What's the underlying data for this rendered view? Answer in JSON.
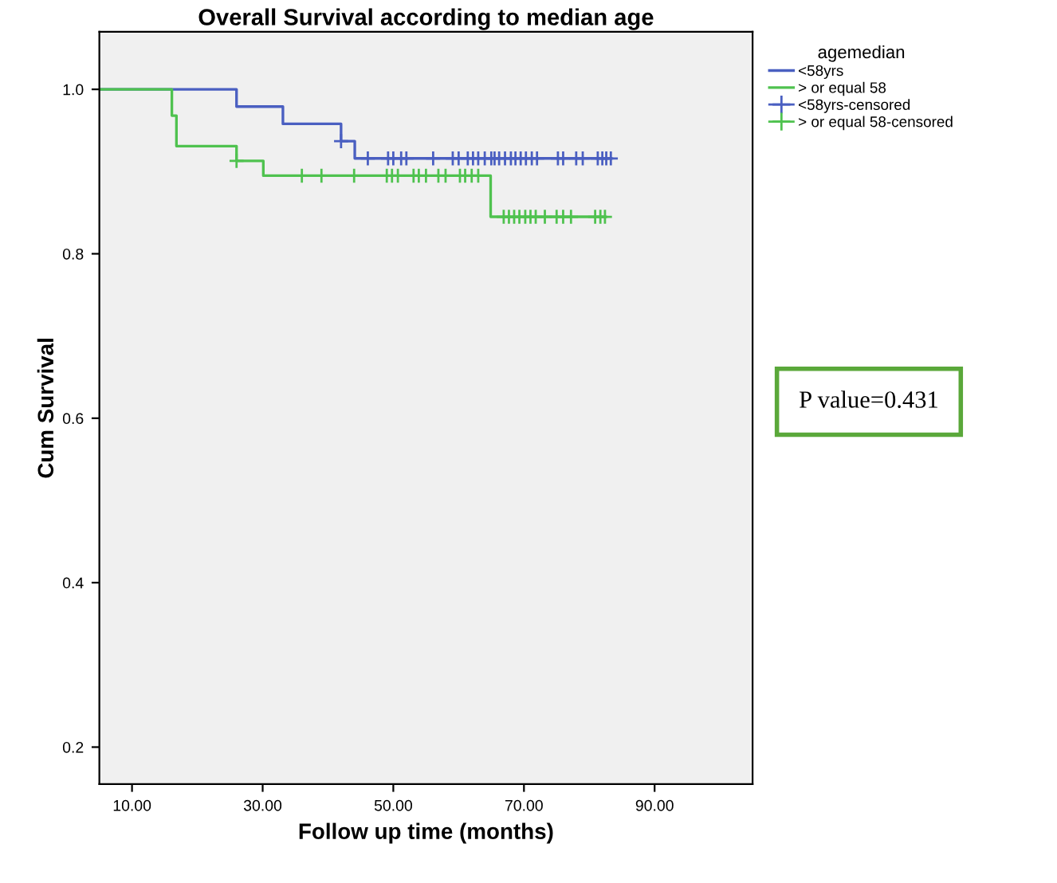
{
  "chart_data": {
    "type": "step",
    "title": "Overall Survival according to median age",
    "xlabel": "Follow up time (months)",
    "ylabel": "Cum Survival",
    "legend_title": "agemedian",
    "series": [
      {
        "name": "<58yrs",
        "color": "#4a5fc1",
        "x": [
          5,
          26,
          33.1,
          42,
          44.1,
          83.3
        ],
        "values": [
          1.0,
          0.979,
          0.958,
          0.937,
          0.916,
          0.916
        ]
      },
      {
        "name": "> or equal 58",
        "color": "#4fc24f",
        "x": [
          5,
          16.1,
          16.8,
          26,
          30.1,
          64.9,
          82.4
        ],
        "values": [
          1.0,
          0.968,
          0.931,
          0.913,
          0.895,
          0.845,
          0.845
        ]
      },
      {
        "name": "<58yrs-censored",
        "type": "scatter",
        "marker": "cross",
        "color": "#4a5fc1",
        "x": [
          42,
          46.1,
          49.2,
          50,
          51.2,
          52,
          56.1,
          59.1,
          60,
          61.4,
          62.2,
          63,
          64,
          65,
          65.5,
          66.2,
          67.1,
          68,
          68.7,
          69.5,
          70.3,
          71.2,
          72,
          75.2,
          76,
          78,
          79,
          81.3,
          82,
          82.6,
          83.3
        ],
        "values": [
          0.937,
          0.916,
          0.916,
          0.916,
          0.916,
          0.916,
          0.916,
          0.916,
          0.916,
          0.916,
          0.916,
          0.916,
          0.916,
          0.916,
          0.916,
          0.916,
          0.916,
          0.916,
          0.916,
          0.916,
          0.916,
          0.916,
          0.916,
          0.916,
          0.916,
          0.916,
          0.916,
          0.916,
          0.916,
          0.916,
          0.916
        ]
      },
      {
        "name": "> or equal 58-censored",
        "type": "scatter",
        "marker": "cross",
        "color": "#4fc24f",
        "x": [
          26,
          36,
          39,
          44,
          49,
          49.8,
          50.7,
          53.1,
          53.9,
          55,
          56.9,
          58,
          60.2,
          61,
          62,
          63,
          66.9,
          67.7,
          68.5,
          69.3,
          70.2,
          71,
          71.8,
          73.2,
          75,
          76,
          77.2,
          80.9,
          81.7,
          82.4
        ],
        "values": [
          0.913,
          0.895,
          0.895,
          0.895,
          0.895,
          0.895,
          0.895,
          0.895,
          0.895,
          0.895,
          0.895,
          0.895,
          0.895,
          0.895,
          0.895,
          0.895,
          0.845,
          0.845,
          0.845,
          0.845,
          0.845,
          0.845,
          0.845,
          0.845,
          0.845,
          0.845,
          0.845,
          0.845,
          0.845,
          0.845
        ]
      }
    ],
    "xlim": [
      5,
      105
    ],
    "xticks": [
      {
        "value": 10,
        "label": "10.00"
      },
      {
        "value": 30,
        "label": "30.00"
      },
      {
        "value": 50,
        "label": "50.00"
      },
      {
        "value": 70,
        "label": "70.00"
      },
      {
        "value": 90,
        "label": "90.00"
      }
    ],
    "ylim": [
      0.155,
      1.07
    ],
    "yticks": [
      {
        "value": 0.2,
        "label": "0.2"
      },
      {
        "value": 0.4,
        "label": "0.4"
      },
      {
        "value": 0.6,
        "label": "0.6"
      },
      {
        "value": 0.8,
        "label": "0.8"
      },
      {
        "value": 1.0,
        "label": "1.0"
      }
    ],
    "grid": false,
    "legend": "right",
    "annotations": [
      "P value=0.431"
    ]
  }
}
